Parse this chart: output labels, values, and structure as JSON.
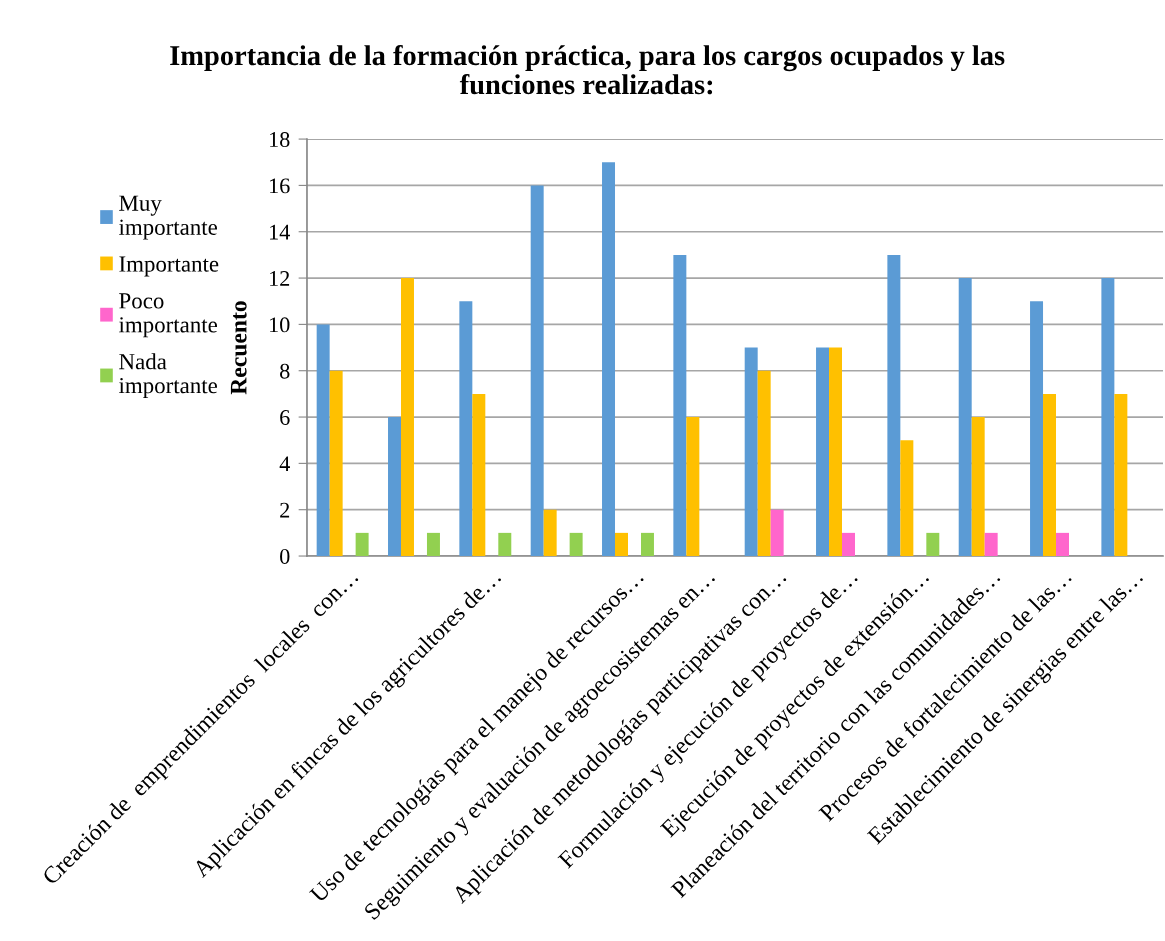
{
  "chart_data": {
    "type": "bar",
    "title": "Importancia de la formación práctica, para los cargos ocupados y las\nfunciones realizadas:",
    "ylabel": "Recuento",
    "categories": [
      "Creación de  emprendimientos  locales  con…",
      null,
      "Aplicación en fincas de los agricultores de…",
      null,
      "Uso de tecnologías para el manejo de recursos…",
      "Seguimiento y evaluación de agroecosistemas en…",
      "Aplicación de metodologías participativas con…",
      "Formulación y ejecución de proyectos de…",
      "Ejecución de proyectos de extensión…",
      "Planeación del territorio con las comunidades…",
      "Procesos de fortalecimiento de las…",
      "Establecimiento de sinergias entre las…"
    ],
    "series": [
      {
        "name": "Muy\nimportante",
        "color": "#5b9bd5",
        "values": [
          10,
          6,
          11,
          16,
          17,
          13,
          9,
          9,
          13,
          12,
          11,
          12
        ]
      },
      {
        "name": "Importante",
        "color": "#ffc000",
        "values": [
          8,
          12,
          7,
          2,
          1,
          6,
          8,
          9,
          5,
          6,
          7,
          7
        ]
      },
      {
        "name": "Poco\nimportante",
        "color": "#ff66cc",
        "values": [
          null,
          null,
          null,
          null,
          null,
          null,
          2,
          1,
          null,
          1,
          1,
          null
        ]
      },
      {
        "name": "Nada\nimportante",
        "color": "#92d050",
        "values": [
          1,
          1,
          1,
          1,
          1,
          null,
          null,
          null,
          1,
          null,
          null,
          null
        ]
      }
    ],
    "ylim": [
      0,
      18
    ],
    "yticks": [
      0,
      2,
      4,
      6,
      8,
      10,
      12,
      14,
      16,
      18
    ],
    "grid": "y",
    "legend": "left"
  }
}
